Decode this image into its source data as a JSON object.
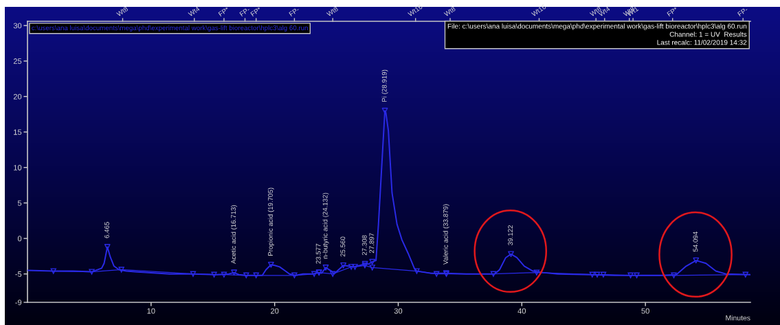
{
  "chart_data": {
    "type": "line",
    "xlabel": "Minutes",
    "xlim": [
      0,
      58.5
    ],
    "xticks": [
      10,
      20,
      30,
      40,
      50
    ],
    "ylim": [
      -9,
      30.6
    ],
    "yticks": [
      -9,
      -5,
      0,
      5,
      10,
      15,
      20,
      25,
      30
    ],
    "legend": "top left",
    "series": [
      {
        "name": "c:\\users\\ana luisa\\documents\\mega\\phd\\experimental work\\gas-lift bioreactor\\hplc3\\alg 60.run",
        "color": "#2a2ae6",
        "marker": "none",
        "x": [
          0.0,
          2.1,
          3.7,
          5.2,
          6.0,
          6.2,
          6.465,
          6.7,
          7.0,
          7.4,
          8.0,
          8.7,
          11.5,
          13.4,
          15.3,
          16.3,
          16.713,
          17.1,
          17.7,
          19.0,
          19.3,
          19.705,
          20.0,
          20.4,
          20.8,
          21.2,
          21.7,
          22.3,
          23.1,
          23.577,
          23.8,
          24.132,
          24.6,
          24.8,
          25.0,
          25.56,
          26.0,
          26.4,
          26.9,
          27.308,
          27.6,
          27.897,
          28.2,
          28.4,
          28.6,
          28.919,
          29.0,
          29.2,
          29.5,
          29.9,
          30.3,
          30.8,
          31.3,
          31.5,
          32.6,
          33.879,
          35.5,
          37.8,
          38.2,
          38.7,
          39.122,
          39.6,
          40.2,
          40.9,
          41.7,
          42.9,
          45.6,
          47.5,
          51.4,
          52.5,
          53.3,
          54.094,
          54.9,
          55.7,
          56.5,
          58.5
        ],
        "values": [
          -4.5,
          -4.6,
          -4.6,
          -4.7,
          -4.2,
          -3.5,
          -1.2,
          -2.6,
          -3.9,
          -4.4,
          -4.6,
          -4.7,
          -5.0,
          -5.0,
          -5.1,
          -5.0,
          -4.8,
          -5.1,
          -5.2,
          -5.2,
          -4.4,
          -3.7,
          -3.8,
          -4.0,
          -4.5,
          -5.0,
          -5.2,
          -5.0,
          -5.0,
          -4.8,
          -4.9,
          -4.1,
          -4.6,
          -5.0,
          -4.7,
          -3.8,
          -3.9,
          -4.0,
          -3.8,
          -3.6,
          -3.6,
          -3.3,
          -3.1,
          2.0,
          8.2,
          18.0,
          17.7,
          15.2,
          6.4,
          2.0,
          -0.2,
          -2.1,
          -4.2,
          -4.6,
          -4.9,
          -4.9,
          -5.0,
          -5.0,
          -4.4,
          -2.7,
          -2.2,
          -2.7,
          -3.9,
          -4.6,
          -4.8,
          -5.0,
          -5.1,
          -5.2,
          -5.2,
          -5.1,
          -3.9,
          -3.1,
          -3.5,
          -4.6,
          -5.0,
          -5.1
        ]
      },
      {
        "type": "line",
        "color": "#2a2ae6",
        "marker": "triangle",
        "x": [
          2.1,
          5.2,
          7.6,
          13.4,
          15.1,
          15.9,
          17.7,
          18.5,
          21.6,
          23.2,
          23.6,
          24.7,
          26.2,
          26.5,
          27.3,
          27.9,
          31.5,
          33.1,
          33.9,
          37.7,
          41.2,
          45.7,
          46.1,
          46.6,
          48.8,
          49.3,
          52.3,
          58.1
        ],
        "values": [
          -4.6,
          -4.7,
          -4.4,
          -5.0,
          -5.1,
          -5.1,
          -5.2,
          -5.2,
          -5.2,
          -5.0,
          -4.8,
          -5.0,
          -4.0,
          -4.0,
          -3.8,
          -4.1,
          -4.6,
          -5.0,
          -5.0,
          -5.0,
          -4.8,
          -5.1,
          -5.1,
          -5.1,
          -5.2,
          -5.2,
          -5.2,
          -5.1
        ]
      },
      {
        "type": "scatter",
        "color": "#2a2ae6",
        "marker": "triangle",
        "x": [
          6.465,
          16.713,
          19.705,
          23.577,
          24.132,
          25.56,
          27.308,
          27.897,
          28.919,
          33.879,
          39.122,
          54.094
        ],
        "values": [
          -1.2,
          -4.8,
          -3.7,
          -4.8,
          -4.1,
          -3.8,
          -3.6,
          -3.3,
          18.0,
          -4.9,
          -2.2,
          -3.1
        ]
      }
    ],
    "ref_lines": [
      {
        "axis": "x",
        "value": 7.7,
        "label": "Wt8"
      },
      {
        "axis": "x",
        "value": 13.5,
        "label": "Wt4"
      },
      {
        "axis": "x",
        "value": 15.9,
        "label": "FP*"
      },
      {
        "axis": "x",
        "value": 17.6,
        "label": "FP-"
      },
      {
        "axis": "x",
        "value": 18.5,
        "label": "FP*"
      },
      {
        "axis": "x",
        "value": 21.6,
        "label": "FP-"
      },
      {
        "axis": "x",
        "value": 24.7,
        "label": "Wt8"
      },
      {
        "axis": "x",
        "value": 31.4,
        "label": "Wt16"
      },
      {
        "axis": "x",
        "value": 34.2,
        "label": "Wt8"
      },
      {
        "axis": "x",
        "value": 41.4,
        "label": "Wt16"
      },
      {
        "axis": "x",
        "value": 46.0,
        "label": "Wt8"
      },
      {
        "axis": "x",
        "value": 46.7,
        "label": "Wt4"
      },
      {
        "axis": "x",
        "value": 48.7,
        "label": "Wt8"
      },
      {
        "axis": "x",
        "value": 49.0,
        "label": "Wt1"
      },
      {
        "axis": "x",
        "value": 52.2,
        "label": "FP*"
      },
      {
        "axis": "x",
        "value": 57.9,
        "label": "FP-"
      }
    ],
    "annotations": [
      "File: c:\\users\\ana luisa\\documents\\mega\\phd\\experimental work\\gas-lift bioreactor\\hplc3\\alg 60.run\nChannel: 1 = UV  Results\nLast recalc: 11/02/2019 14:32",
      {
        "text": "6.465",
        "x": 6.465,
        "y": -1.2
      },
      {
        "text": "Acetic acid (16.713)",
        "x": 16.713,
        "y": -4.8
      },
      {
        "text": "Propionic acid (19.705)",
        "x": 19.705,
        "y": -3.7
      },
      {
        "text": "23.577",
        "x": 23.577,
        "y": -4.8
      },
      {
        "text": "n-butyric acid (24.132)",
        "x": 24.132,
        "y": -4.1
      },
      {
        "text": "25.560",
        "x": 25.56,
        "y": -3.8
      },
      {
        "text": "27.308",
        "x": 27.308,
        "y": -3.6
      },
      {
        "text": "27.897",
        "x": 27.897,
        "y": -3.3
      },
      {
        "text": "Pi (28.919)",
        "x": 28.919,
        "y": 18.0
      },
      {
        "text": "Valeric acid (33.879)",
        "x": 33.879,
        "y": -4.9
      },
      {
        "text": "39.122",
        "x": 39.122,
        "y": -2.2
      },
      {
        "text": "54.094",
        "x": 54.094,
        "y": -3.1
      }
    ]
  }
}
